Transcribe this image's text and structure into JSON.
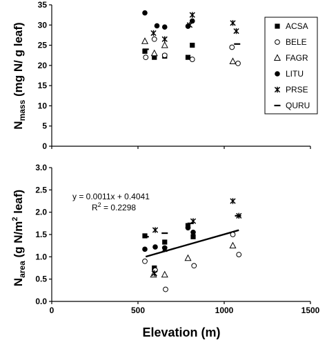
{
  "chart_data": [
    {
      "type": "scatter",
      "panel": "top",
      "ylabel_main": "N",
      "ylabel_sub": "mass",
      "ylabel_rest": " (mg N/ g leaf)",
      "ylim": [
        0,
        35
      ],
      "xlim": [
        0,
        1500
      ],
      "yticks": [
        "0",
        "5",
        "10",
        "15",
        "20",
        "25",
        "30",
        "35"
      ],
      "legend_position": "top-right",
      "legend": [
        "ACSA",
        "BELE",
        "FAGR",
        "LITU",
        "PRSE",
        "QURU"
      ],
      "series": [
        {
          "name": "ACSA",
          "marker": "square",
          "points": [
            [
              540,
              23.5
            ],
            [
              595,
              22.0
            ],
            [
              655,
              22.3
            ],
            [
              790,
              22.0
            ],
            [
              815,
              25.0
            ]
          ]
        },
        {
          "name": "BELE",
          "marker": "circle-open",
          "points": [
            [
              545,
              22.0
            ],
            [
              595,
              26.5
            ],
            [
              655,
              22.5
            ],
            [
              815,
              21.5
            ],
            [
              1045,
              24.5
            ],
            [
              1080,
              20.5
            ]
          ]
        },
        {
          "name": "FAGR",
          "marker": "triangle-open",
          "points": [
            [
              540,
              26.0
            ],
            [
              595,
              23.0
            ],
            [
              655,
              25.0
            ],
            [
              1050,
              21.0
            ]
          ]
        },
        {
          "name": "LITU",
          "marker": "circle",
          "points": [
            [
              540,
              33.0
            ],
            [
              610,
              29.8
            ],
            [
              655,
              29.5
            ],
            [
              790,
              29.7
            ],
            [
              815,
              31.0
            ]
          ]
        },
        {
          "name": "PRSE",
          "marker": "star",
          "points": [
            [
              590,
              28.0
            ],
            [
              655,
              26.5
            ],
            [
              800,
              30.0
            ],
            [
              815,
              32.5
            ],
            [
              1050,
              30.5
            ],
            [
              1070,
              28.5
            ]
          ]
        },
        {
          "name": "QURU",
          "marker": "dash",
          "points": [
            [
              545,
              24.0
            ],
            [
              1075,
              25.3
            ]
          ]
        }
      ]
    },
    {
      "type": "scatter",
      "panel": "bottom",
      "ylabel_main": "N",
      "ylabel_sub": "area",
      "ylabel_rest1": " (g N/m",
      "ylabel_sup": "2",
      "ylabel_rest2": " leaf)",
      "ylim": [
        0,
        3
      ],
      "xlim": [
        0,
        1500
      ],
      "yticks": [
        "0.0",
        "0.5",
        "1.0",
        "1.5",
        "2.0",
        "2.5",
        "3.0"
      ],
      "xticks": [
        "0",
        "500",
        "1000",
        "1500"
      ],
      "xlabel": "Elevation (m)",
      "annotation": {
        "equation": "y = 0.0011x + 0.4041",
        "r2_prefix": "R",
        "r2_sup": "2",
        "r2_suffix": " = 0.2298"
      },
      "trendline": {
        "slope": 0.0011,
        "intercept": 0.4041,
        "x_range": [
          545,
          1085
        ]
      },
      "series": [
        {
          "name": "ACSA",
          "marker": "square",
          "points": [
            [
              540,
              1.47
            ],
            [
              595,
              0.75
            ],
            [
              655,
              1.33
            ],
            [
              790,
              1.7
            ],
            [
              820,
              1.45
            ]
          ]
        },
        {
          "name": "BELE",
          "marker": "circle-open",
          "points": [
            [
              540,
              0.9
            ],
            [
              600,
              0.7
            ],
            [
              660,
              0.27
            ],
            [
              825,
              0.8
            ],
            [
              1050,
              1.5
            ],
            [
              1085,
              1.05
            ]
          ]
        },
        {
          "name": "FAGR",
          "marker": "triangle-open",
          "points": [
            [
              590,
              0.6
            ],
            [
              655,
              0.6
            ],
            [
              790,
              0.97
            ],
            [
              1050,
              1.25
            ]
          ]
        },
        {
          "name": "LITU",
          "marker": "circle",
          "points": [
            [
              540,
              1.17
            ],
            [
              600,
              1.22
            ],
            [
              655,
              1.2
            ],
            [
              790,
              1.65
            ],
            [
              820,
              1.55
            ]
          ]
        },
        {
          "name": "PRSE",
          "marker": "star",
          "points": [
            [
              595,
              0.63
            ],
            [
              600,
              1.6
            ],
            [
              655,
              1.17
            ],
            [
              820,
              1.8
            ],
            [
              1050,
              2.25
            ],
            [
              1085,
              1.92
            ]
          ]
        },
        {
          "name": "QURU",
          "marker": "dash",
          "points": [
            [
              545,
              1.45
            ],
            [
              655,
              1.53
            ],
            [
              805,
              1.75
            ],
            [
              1080,
              1.92
            ]
          ]
        }
      ]
    }
  ]
}
